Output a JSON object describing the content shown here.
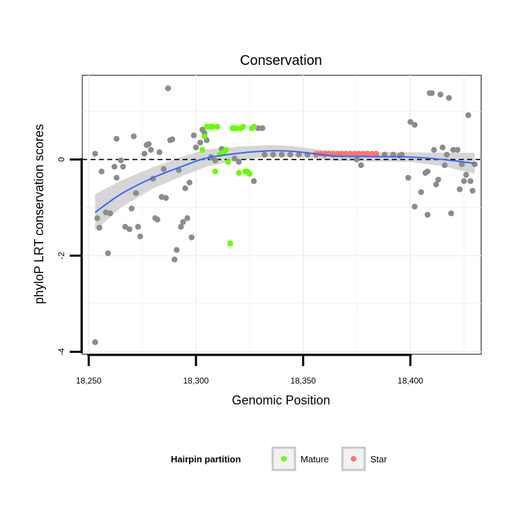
{
  "chart_data": {
    "type": "scatter",
    "title": "Conservation",
    "xlabel": "Genomic Position",
    "ylabel": "phyloP LRT conservation scores",
    "xlim": [
      18247,
      18433
    ],
    "ylim": [
      -4.05,
      1.75
    ],
    "x_ticks": [
      {
        "value": 18250,
        "label": "18,250"
      },
      {
        "value": 18300,
        "label": "18,300"
      },
      {
        "value": 18350,
        "label": "18,350"
      },
      {
        "value": 18400,
        "label": "18,400"
      }
    ],
    "y_ticks": [
      {
        "value": 0,
        "label": "0"
      },
      {
        "value": -2,
        "label": "-2"
      },
      {
        "value": -4,
        "label": "-4"
      }
    ],
    "grid": true,
    "reference_line": {
      "y": 0,
      "style": "dashed"
    },
    "legend": {
      "title": "Hairpin partition",
      "placement": "bottom",
      "entries": [
        {
          "label": "Mature",
          "color": "#66ff00"
        },
        {
          "label": "Star",
          "color": "#f8766d"
        }
      ]
    },
    "colors": {
      "other": "#8c8c8c",
      "mature": "#66ff00",
      "star": "#f8766d",
      "smooth": "#3366ff",
      "band": "#c8c8c8"
    },
    "series": [
      {
        "group": "other",
        "points": [
          [
            18253,
            0.12
          ],
          [
            18253,
            -3.8
          ],
          [
            18254,
            -1.22
          ],
          [
            18255,
            -1.42
          ],
          [
            18256,
            -0.25
          ],
          [
            18258,
            -1.1
          ],
          [
            18259,
            -1.95
          ],
          [
            18260,
            -1.12
          ],
          [
            18262,
            -0.15
          ],
          [
            18263,
            -0.38
          ],
          [
            18263,
            0.43
          ],
          [
            18265,
            -0.02
          ],
          [
            18266,
            -0.15
          ],
          [
            18267,
            -1.4
          ],
          [
            18269,
            -1.45
          ],
          [
            18270,
            -1.02
          ],
          [
            18271,
            0.48
          ],
          [
            18272,
            -0.7
          ],
          [
            18273,
            -1.4
          ],
          [
            18274,
            -1.6
          ],
          [
            18276,
            0.12
          ],
          [
            18277,
            0.3
          ],
          [
            18278,
            0.32
          ],
          [
            18279,
            0.2
          ],
          [
            18280,
            -0.4
          ],
          [
            18281,
            -1.22
          ],
          [
            18282,
            -1.25
          ],
          [
            18283,
            0.15
          ],
          [
            18284,
            -0.78
          ],
          [
            18285,
            -0.2
          ],
          [
            18286,
            -0.8
          ],
          [
            18287,
            1.48
          ],
          [
            18288,
            0.4
          ],
          [
            18289,
            0.42
          ],
          [
            18290,
            -2.08
          ],
          [
            18291,
            -1.88
          ],
          [
            18292,
            -0.22
          ],
          [
            18293,
            -1.4
          ],
          [
            18294,
            -1.3
          ],
          [
            18295,
            -0.6
          ],
          [
            18296,
            -1.22
          ],
          [
            18297,
            -0.48
          ],
          [
            18298,
            -1.62
          ],
          [
            18299,
            0.5
          ],
          [
            18300,
            0.25
          ],
          [
            18302,
            0.35
          ],
          [
            18303,
            0.62
          ],
          [
            18304,
            0.55
          ],
          [
            18305,
            0.4
          ],
          [
            18307,
            0.05
          ],
          [
            18309,
            -0.02
          ],
          [
            18312,
            0.22
          ],
          [
            18318,
            0.02
          ],
          [
            18320,
            -0.05
          ],
          [
            18327,
            -0.45
          ],
          [
            18329,
            0.65
          ],
          [
            18331,
            0.65
          ],
          [
            18332,
            0.1
          ],
          [
            18336,
            0.1
          ],
          [
            18340,
            0.1
          ],
          [
            18344,
            0.1
          ],
          [
            18348,
            0.1
          ],
          [
            18352,
            0.1
          ],
          [
            18356,
            0.1
          ],
          [
            18360,
            0.1
          ],
          [
            18364,
            0.1
          ],
          [
            18368,
            0.1
          ],
          [
            18372,
            0.1
          ],
          [
            18376,
            0.1
          ],
          [
            18380,
            0.1
          ],
          [
            18384,
            0.1
          ],
          [
            18388,
            0.1
          ],
          [
            18392,
            0.1
          ],
          [
            18396,
            0.1
          ],
          [
            18375,
            0.0
          ],
          [
            18377,
            -0.12
          ],
          [
            18395,
            0.08
          ],
          [
            18399,
            -0.38
          ],
          [
            18400,
            0.78
          ],
          [
            18402,
            -0.98
          ],
          [
            18402,
            0.72
          ],
          [
            18405,
            -0.68
          ],
          [
            18407,
            -0.28
          ],
          [
            18408,
            -1.15
          ],
          [
            18408,
            -0.25
          ],
          [
            18409,
            1.38
          ],
          [
            18410,
            1.38
          ],
          [
            18411,
            0.2
          ],
          [
            18412,
            -0.52
          ],
          [
            18413,
            -0.42
          ],
          [
            18414,
            1.35
          ],
          [
            18415,
            0.25
          ],
          [
            18416,
            -0.12
          ],
          [
            18417,
            0.1
          ],
          [
            18418,
            1.28
          ],
          [
            18419,
            -1.12
          ],
          [
            18420,
            0.2
          ],
          [
            18422,
            0.2
          ],
          [
            18423,
            -0.62
          ],
          [
            18424,
            -0.1
          ],
          [
            18425,
            -0.45
          ],
          [
            18426,
            -0.32
          ],
          [
            18427,
            0.92
          ],
          [
            18428,
            -0.45
          ],
          [
            18429,
            -0.65
          ],
          [
            18430,
            -0.1
          ]
        ]
      },
      {
        "group": "Mature",
        "points": [
          [
            18303,
            0.2
          ],
          [
            18304,
            0.48
          ],
          [
            18305,
            0.68
          ],
          [
            18306,
            0.68
          ],
          [
            18307,
            0.68
          ],
          [
            18308,
            0.68
          ],
          [
            18309,
            -0.25
          ],
          [
            18310,
            0.68
          ],
          [
            18311,
            0.1
          ],
          [
            18313,
            0.15
          ],
          [
            18314,
            0.2
          ],
          [
            18315,
            -0.05
          ],
          [
            18316,
            -1.75
          ],
          [
            18317,
            0.65
          ],
          [
            18318,
            0.65
          ],
          [
            18319,
            0.65
          ],
          [
            18320,
            -0.28
          ],
          [
            18321,
            0.65
          ],
          [
            18322,
            0.68
          ],
          [
            18323,
            -0.25
          ],
          [
            18324,
            -0.25
          ],
          [
            18325,
            -0.3
          ],
          [
            18326,
            0.65
          ],
          [
            18327,
            0.68
          ]
        ]
      },
      {
        "group": "Star",
        "points": [
          [
            18356,
            0.12
          ],
          [
            18358,
            0.12
          ],
          [
            18360,
            0.12
          ],
          [
            18362,
            0.12
          ],
          [
            18364,
            0.12
          ],
          [
            18366,
            0.12
          ],
          [
            18368,
            0.12
          ],
          [
            18370,
            0.12
          ],
          [
            18372,
            0.12
          ],
          [
            18374,
            0.12
          ],
          [
            18376,
            0.12
          ],
          [
            18378,
            0.12
          ],
          [
            18380,
            0.12
          ],
          [
            18382,
            0.12
          ],
          [
            18384,
            0.12
          ]
        ]
      }
    ],
    "smooth": {
      "x": [
        18253,
        18265,
        18280,
        18295,
        18305,
        18320,
        18335,
        18345,
        18355,
        18365,
        18380,
        18400,
        18415,
        18430
      ],
      "y": [
        -1.1,
        -0.72,
        -0.38,
        -0.12,
        0.03,
        0.13,
        0.18,
        0.17,
        0.12,
        0.07,
        0.06,
        0.05,
        0.0,
        -0.08
      ],
      "se": [
        0.38,
        0.28,
        0.22,
        0.2,
        0.18,
        0.14,
        0.12,
        0.11,
        0.1,
        0.1,
        0.1,
        0.1,
        0.14,
        0.22
      ]
    }
  }
}
